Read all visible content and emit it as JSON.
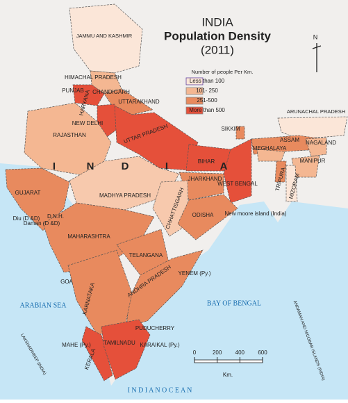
{
  "header": {
    "title": "INDIA",
    "subtitle": "Population Density",
    "year": "(2011)"
  },
  "compass": "N",
  "legend": {
    "title": "Number of people Per Km.",
    "items": [
      {
        "label": "Less than 100",
        "color": "#fbe6d8"
      },
      {
        "label": "101- 250",
        "color": "#f4b792"
      },
      {
        "label": "251-500",
        "color": "#e88a5e"
      },
      {
        "label": "More than 500",
        "color": "#e5503a"
      }
    ]
  },
  "country_letters": [
    "I",
    "N",
    "D",
    "I",
    "A"
  ],
  "states": [
    "JAMMU AND KASHMIR",
    "HIMACHAL PRADESH",
    "PUNJAB",
    "CHANDIGARH",
    "HARYANA",
    "UTTARAKHAND",
    "NEW DELHI",
    "RAJASTHAN",
    "UTTAR PRADESH",
    "SIKKIM",
    "ARUNACHAL PRADESH",
    "ASSAM",
    "NAGALAND",
    "MEGHALAYA",
    "MANIPUR",
    "TRIPURA",
    "MIZORAM",
    "BIHAR",
    "GUJARAT",
    "JHARKHAND",
    "WEST BENGAL",
    "MADHYA PRADESH",
    "CHHATTISGARH",
    "ODISHA",
    "Diu (D &D)",
    "D.N.H.",
    "Daman (D &D)",
    "MAHARASHTRA",
    "TELANGANA",
    "GOA",
    "ANDHRA PRADESH",
    "KARNATAKA",
    "YENEM (Py.)",
    "PUDUCHERRY",
    "KARAIKAL (Py.)",
    "MAHE (Py.)",
    "TAMILNADU",
    "KERALA",
    "LAKSHADWEEP (INDIA)",
    "ANDAMAN AND NICOBAR ISLANDS (INDIA)",
    "New moore island (India)"
  ],
  "seas": [
    "ARABIAN SEA",
    "BAY OF BENGAL",
    "I N D I A N   O C E A N"
  ],
  "scale": {
    "ticks": [
      0,
      200,
      400,
      600
    ],
    "unit": "Km."
  }
}
